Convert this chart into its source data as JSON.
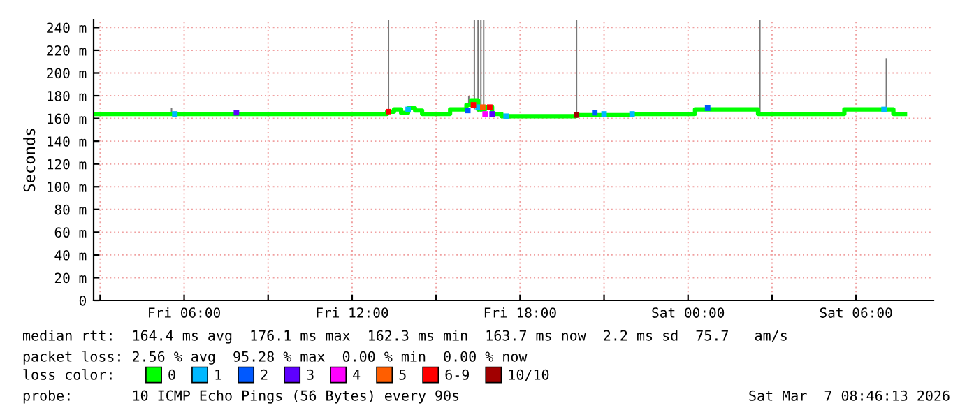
{
  "chart_data": {
    "type": "step",
    "ylabel": "Seconds",
    "legend_title": "loss color:",
    "legend": "bottom",
    "grid": true,
    "xlim": [
      "2026-03-06T02:46",
      "2026-03-07T08:46"
    ],
    "xticks": [
      {
        "value": "2026-03-06T03:00",
        "label": null
      },
      {
        "value": "2026-03-06T06:00",
        "label": "Fri 06:00"
      },
      {
        "value": "2026-03-06T09:00",
        "label": null
      },
      {
        "value": "2026-03-06T12:00",
        "label": "Fri 12:00"
      },
      {
        "value": "2026-03-06T15:00",
        "label": null
      },
      {
        "value": "2026-03-06T18:00",
        "label": "Fri 18:00"
      },
      {
        "value": "2026-03-06T21:00",
        "label": null
      },
      {
        "value": "2026-03-07T00:00",
        "label": "Sat 00:00"
      },
      {
        "value": "2026-03-07T03:00",
        "label": null
      },
      {
        "value": "2026-03-07T06:00",
        "label": "Sat 06:00"
      }
    ],
    "ylim": [
      0,
      247
    ],
    "yticks": [
      0,
      {
        "value": 20,
        "label": "20 m"
      },
      {
        "value": 40,
        "label": "40 m"
      },
      {
        "value": 60,
        "label": "60 m"
      },
      {
        "value": 80,
        "label": "80 m"
      },
      {
        "value": 100,
        "label": "100 m"
      },
      {
        "value": 120,
        "label": "120 m"
      },
      {
        "value": 140,
        "label": "140 m"
      },
      {
        "value": 160,
        "label": "160 m"
      },
      {
        "value": 180,
        "label": "180 m"
      },
      {
        "value": 200,
        "label": "200 m"
      },
      {
        "value": 220,
        "label": "220 m"
      },
      {
        "value": 240,
        "label": "240 m"
      }
    ],
    "series": [
      {
        "type": "bar",
        "color": "#777777",
        "x": [
          "2026-03-06T05:33",
          "2026-03-06T13:18",
          "2026-03-06T16:10",
          "2026-03-06T16:22",
          "2026-03-06T16:30",
          "2026-03-06T16:36",
          "2026-03-06T16:42",
          "2026-03-06T20:01",
          "2026-03-07T02:34",
          "2026-03-07T07:05"
        ],
        "base": [
          164,
          164,
          172,
          168,
          166,
          166,
          168,
          163,
          164,
          168
        ],
        "values": [
          5,
          83,
          8,
          79,
          81,
          81,
          79,
          84,
          83,
          45
        ]
      },
      {
        "name": "0",
        "color": "#00ff00",
        "x": [
          "2026-03-06T02:46",
          "2026-03-06T06:00",
          "2026-03-06T09:00",
          "2026-03-06T12:00",
          "2026-03-06T13:15",
          "2026-03-06T13:30",
          "2026-03-06T13:45",
          "2026-03-06T14:00",
          "2026-03-06T14:15",
          "2026-03-06T14:30",
          "2026-03-06T15:00",
          "2026-03-06T15:30",
          "2026-03-06T15:50",
          "2026-03-06T16:05",
          "2026-03-06T16:15",
          "2026-03-06T16:30",
          "2026-03-06T16:45",
          "2026-03-06T17:00",
          "2026-03-06T17:20",
          "2026-03-06T19:00",
          "2026-03-06T20:00",
          "2026-03-06T22:00",
          "2026-03-07T00:00",
          "2026-03-07T00:15",
          "2026-03-07T01:00",
          "2026-03-07T01:50",
          "2026-03-07T02:30",
          "2026-03-07T04:00",
          "2026-03-07T05:35",
          "2026-03-07T06:30",
          "2026-03-07T07:20",
          "2026-03-07T07:45"
        ],
        "values": [
          164,
          164,
          164,
          164,
          166,
          168,
          165,
          169,
          167,
          164,
          164,
          168,
          168,
          172,
          176,
          168,
          170,
          164,
          162,
          162,
          163,
          164,
          164,
          168,
          168,
          168,
          164,
          164,
          168,
          168,
          164,
          164
        ]
      },
      {
        "name": "1",
        "type": "scatter",
        "color": "#00b8ff",
        "x": [
          "2026-03-06T05:40",
          "2026-03-06T14:00",
          "2026-03-06T16:30",
          "2026-03-06T17:30",
          "2026-03-06T21:00",
          "2026-03-06T22:00",
          "2026-03-07T07:00"
        ],
        "values": [
          164,
          168,
          170,
          162,
          164,
          164,
          168
        ]
      },
      {
        "name": "2",
        "type": "scatter",
        "color": "#0059ff",
        "x": [
          "2026-03-06T16:08",
          "2026-03-06T20:40",
          "2026-03-07T00:42"
        ],
        "values": [
          167,
          165,
          169
        ]
      },
      {
        "name": "3",
        "type": "scatter",
        "color": "#5e00ff",
        "x": [
          "2026-03-06T07:52",
          "2026-03-06T17:00"
        ],
        "values": [
          165,
          164
        ]
      },
      {
        "name": "4",
        "type": "scatter",
        "color": "#ff00ff",
        "x": [
          "2026-03-06T16:45"
        ],
        "values": [
          164
        ]
      },
      {
        "name": "5",
        "type": "scatter",
        "color": "#ff5e00",
        "x": [
          "2026-03-06T16:40"
        ],
        "values": [
          170
        ]
      },
      {
        "name": "6-9",
        "type": "scatter",
        "color": "#ff0000",
        "x": [
          "2026-03-06T13:18",
          "2026-03-06T16:20",
          "2026-03-06T16:55"
        ],
        "values": [
          166,
          172,
          170
        ]
      },
      {
        "name": "10/10",
        "type": "scatter",
        "color": "#a10000",
        "x": [
          "2026-03-06T20:01"
        ],
        "values": [
          163
        ]
      }
    ],
    "annotations": [
      "median rtt:  164.4 ms avg  176.1 ms max  162.3 ms min  163.7 ms now  2.2 ms sd  75.7   am/s",
      "packet loss: 2.56 % avg  95.28 % max  0.00 % min  0.00 % now",
      "probe:       10 ICMP Echo Pings (56 Bytes) every 90s",
      "Sat Mar  7 08:46:13 2026"
    ]
  }
}
